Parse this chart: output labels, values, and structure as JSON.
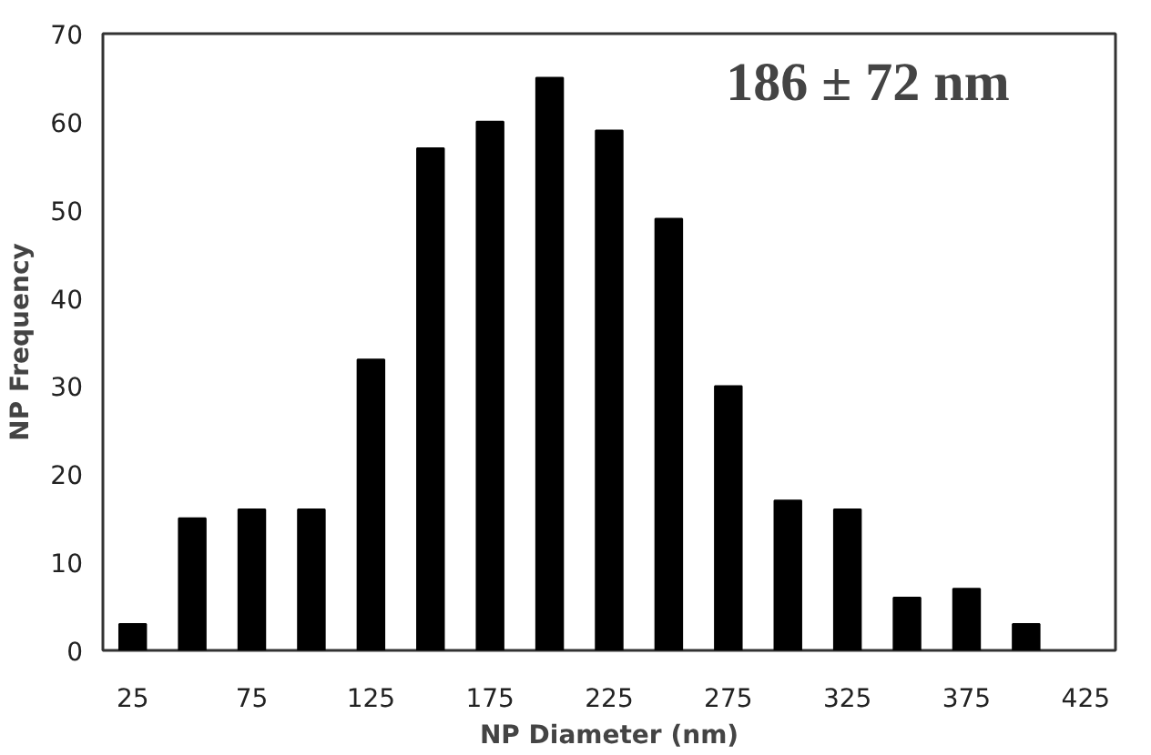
{
  "chart_data": {
    "type": "bar",
    "xlabel": "NP Diameter (nm)",
    "ylabel": "NP Frequency",
    "x": [
      25,
      50,
      75,
      100,
      125,
      150,
      175,
      200,
      225,
      250,
      275,
      300,
      325,
      350,
      375,
      400
    ],
    "values": [
      3,
      15,
      16,
      16,
      33,
      57,
      60,
      65,
      59,
      49,
      30,
      17,
      16,
      6,
      7,
      3
    ],
    "color": "#000000",
    "xlim": [
      12.5,
      437.5
    ],
    "xticks": [
      25,
      75,
      125,
      175,
      225,
      275,
      325,
      375,
      425
    ],
    "ylim": [
      0,
      70
    ],
    "yticks": [
      0,
      10,
      20,
      30,
      40,
      50,
      60,
      70
    ],
    "grid": false,
    "annotations": [
      "186 ± 72 nm"
    ]
  }
}
